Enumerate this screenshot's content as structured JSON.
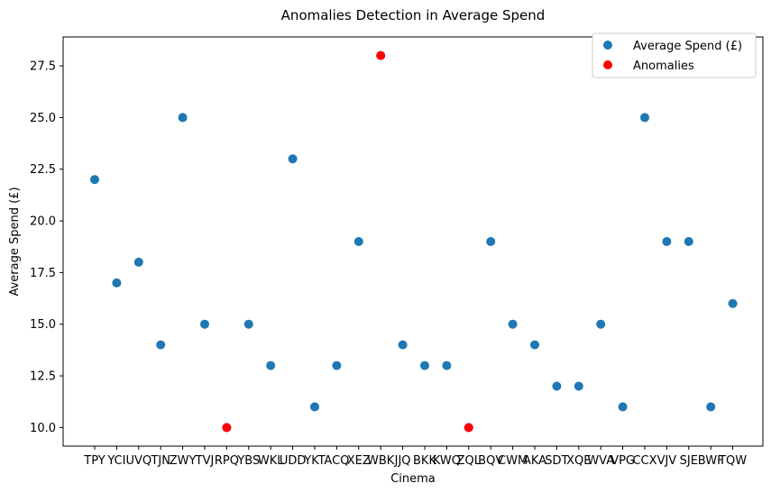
{
  "chart_data": {
    "type": "scatter",
    "title": "Anomalies Detection in Average Spend",
    "xlabel": "Cinema",
    "ylabel": "Average Spend (£)",
    "categories": [
      "TPY",
      "YCI",
      "UVQ",
      "TJN",
      "ZWY",
      "TVJ",
      "RPQ",
      "YBS",
      "WKL",
      "UDD",
      "YKT",
      "ACQ",
      "XEZ",
      "WBK",
      "JJQ",
      "BKK",
      "KWQ",
      "ZQL",
      "BQV",
      "CWM",
      "AKA",
      "SDT",
      "XQE",
      "WVA",
      "VPG",
      "CCX",
      "VJV",
      "SJE",
      "BWF",
      "TQW"
    ],
    "series": [
      {
        "name": "Average Spend (£)",
        "color": "#1f77b4",
        "values": [
          22,
          17,
          18,
          14,
          25,
          15,
          10,
          15,
          13,
          23,
          11,
          13,
          19,
          28,
          14,
          13,
          13,
          10,
          19,
          15,
          14,
          12,
          12,
          15,
          11,
          25,
          19,
          19,
          11,
          16
        ]
      },
      {
        "name": "Anomalies",
        "color": "#ff0000",
        "points": [
          {
            "category": "RPQ",
            "value": 10
          },
          {
            "category": "WBK",
            "value": 28
          },
          {
            "category": "ZQL",
            "value": 10
          }
        ]
      }
    ],
    "yticks": [
      "10.0",
      "12.5",
      "15.0",
      "17.5",
      "20.0",
      "22.5",
      "25.0",
      "27.5"
    ],
    "ylim": [
      9.1,
      28.9
    ],
    "legend": "top-right",
    "grid": false
  }
}
